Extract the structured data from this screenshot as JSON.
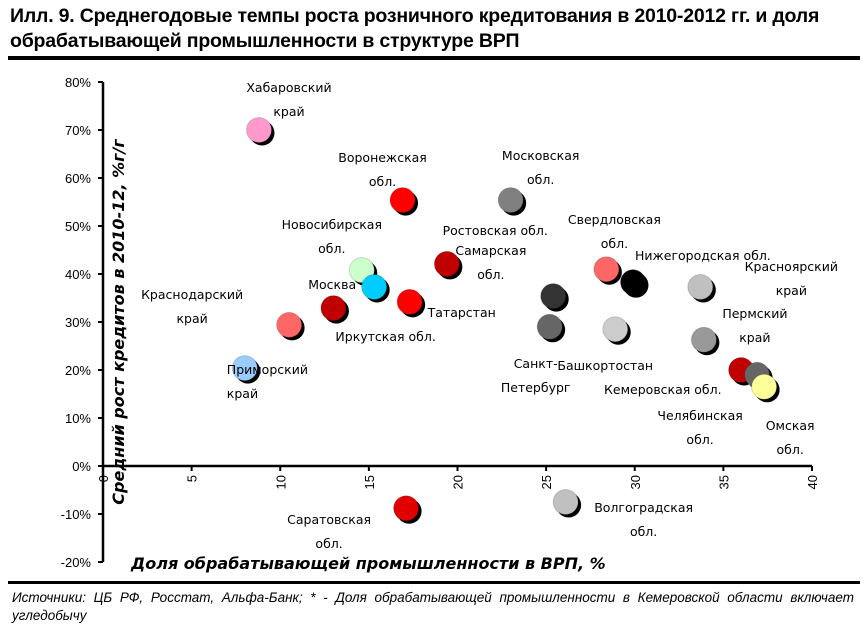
{
  "title": "Илл. 9. Среднегодовые темпы роста розничного кредитования в 2010-2012 гг. и доля обрабатывающей промышленности в структуре ВРП",
  "source": {
    "italic": "Источники: ЦБ РФ, Росстат, Альфа-Банк; * - ",
    "text": "Доля обрабатывающей промышленности в Кемеровской области включает угледобычу"
  },
  "chart_data": {
    "type": "scatter",
    "title": "Среднегодовые темпы роста розничного кредитования в 2010-2012 гг. и доля обрабатывающей промышленности в структуре ВРП",
    "xlabel": "Доля обрабатывающей промышленности в ВРП, %",
    "ylabel": "Средний рост кредитов в 2010-12, %г/г",
    "xlim": [
      0,
      40
    ],
    "ylim": [
      -20,
      80
    ],
    "x_ticks": [
      "0",
      "5",
      "10",
      "15",
      "20",
      "25",
      "30",
      "35",
      "40"
    ],
    "y_ticks": [
      "-20%",
      "-10%",
      "0%",
      "10%",
      "20%",
      "30%",
      "40%",
      "50%",
      "60%",
      "70%",
      "80%"
    ],
    "grid": false,
    "legend": "none",
    "points": [
      {
        "name": "Хабаровский край",
        "label": [
          "Хабаровский",
          "край"
        ],
        "x": 8.8,
        "y": 70.0,
        "color": "#ff99cc"
      },
      {
        "name": "Воронежская обл.",
        "label": [
          "Воронежская",
          "обл."
        ],
        "x": 16.9,
        "y": 55.4,
        "color": "#ff0000"
      },
      {
        "name": "Московская обл.",
        "label": [
          "Московская",
          "обл."
        ],
        "x": 23.0,
        "y": 55.4,
        "color": "#808080"
      },
      {
        "name": "Самарская обл.",
        "label": [
          "Самарская",
          "обл."
        ],
        "x": 19.4,
        "y": 42.1,
        "color": "#c00000"
      },
      {
        "name": "Новосибирская обл.",
        "label": [
          "Новосибирская",
          "обл."
        ],
        "x": 14.6,
        "y": 40.8,
        "color": "#ccffcc"
      },
      {
        "name": "Москва",
        "label": [
          "Москва"
        ],
        "x": 15.3,
        "y": 37.3,
        "color": "#00ccff"
      },
      {
        "name": "Татарстан",
        "label": [
          "Татарстан"
        ],
        "x": 17.3,
        "y": 34.2,
        "color": "#ff0000"
      },
      {
        "name": "Иркутская обл.",
        "label": [
          "Иркутская обл."
        ],
        "x": 13.0,
        "y": 32.9,
        "color": "#c00000"
      },
      {
        "name": "Краснодарский край",
        "label": [
          "Краснодарский",
          "край"
        ],
        "x": 10.5,
        "y": 29.4,
        "color": "#ff6666"
      },
      {
        "name": "Приморский край",
        "label": [
          "Приморский",
          "край"
        ],
        "x": 8.0,
        "y": 20.4,
        "color": "#99ccff"
      },
      {
        "name": "Саратовская обл.",
        "label": [
          "Саратовская",
          "обл."
        ],
        "x": 17.1,
        "y": -8.8,
        "color": "#e00000"
      },
      {
        "name": "Волгоградская обл.",
        "label": [
          "Волгоградская",
          "обл."
        ],
        "x": 26.1,
        "y": -7.5,
        "color": "#c0c0c0"
      },
      {
        "name": "Ростовская обл.",
        "label": [
          "Ростовская обл."
        ],
        "x": 25.4,
        "y": 35.4,
        "color": "#333333"
      },
      {
        "name": "Санкт-Петербург",
        "label": [
          "Санкт-",
          "Петербург"
        ],
        "x": 25.2,
        "y": 29.0,
        "color": "#666666"
      },
      {
        "name": "Свердловская обл.",
        "label": [
          "Свердловская",
          "обл."
        ],
        "x": 28.4,
        "y": 41.0,
        "color": "#ff6666"
      },
      {
        "name": "Нижегородская обл.",
        "label": [
          "Нижегородская обл."
        ],
        "x": 29.9,
        "y": 38.3,
        "color": "#000000"
      },
      {
        "name": "Башкортостан",
        "label": [
          "Башкортостан"
        ],
        "x": 28.9,
        "y": 28.5,
        "color": "#cccccc"
      },
      {
        "name": "Красноярский край",
        "label": [
          "Красноярский",
          "край"
        ],
        "x": 33.7,
        "y": 37.3,
        "color": "#c0c0c0"
      },
      {
        "name": "Пермский край",
        "label": [
          "Пермский",
          "край"
        ],
        "x": 33.9,
        "y": 26.3,
        "color": "#999999"
      },
      {
        "name": "Челябинская обл.",
        "label": [
          "Челябинская",
          "обл."
        ],
        "x": 36.0,
        "y": 20.0,
        "color": "#c00000"
      },
      {
        "name": "Кемеровская обл.",
        "label": [
          "Кемеровская обл."
        ],
        "x": 36.9,
        "y": 19.0,
        "color": "#666666"
      },
      {
        "name": "Омская обл.",
        "label": [
          "Омская",
          "обл."
        ],
        "x": 37.3,
        "y": 16.5,
        "color": "#ffff99"
      }
    ]
  }
}
